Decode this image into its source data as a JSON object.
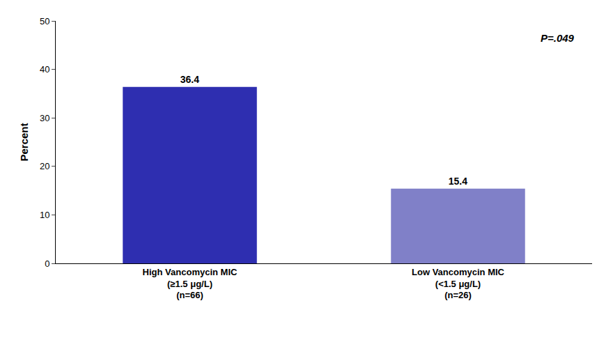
{
  "chart_data": {
    "type": "bar",
    "categories": [
      "High Vancomycin MIC\n(≥1.5 μg/L)\n(n=66)",
      "Low Vancomycin MIC\n(<1.5 μg/L)\n(n=26)"
    ],
    "values": [
      36.4,
      15.4
    ],
    "colors": [
      "#2e2eb0",
      "#8080c8"
    ],
    "data_labels": true,
    "ylabel": "Percent",
    "ylim": [
      0,
      50
    ],
    "yticks": [
      0,
      10,
      20,
      30,
      40,
      50
    ],
    "annotations": [
      "P=.049"
    ],
    "grid": false
  }
}
